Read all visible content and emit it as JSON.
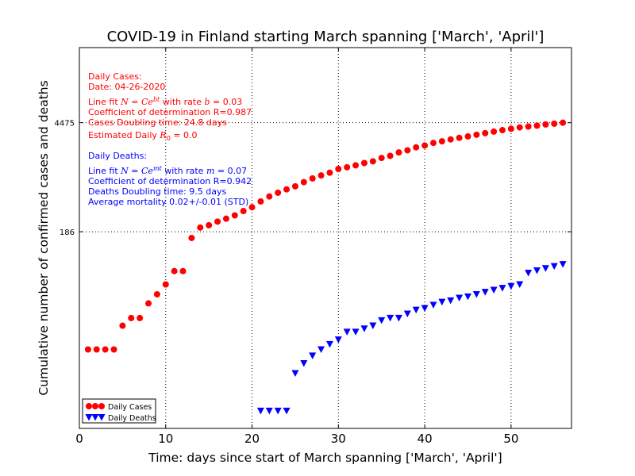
{
  "chart_data": {
    "type": "scatter",
    "title": "COVID-19 in Finland starting March spanning ['March', 'April']",
    "xlabel": "Time: days since start of March spanning ['March', 'April']",
    "ylabel": "Cumulative number of confirmed cases and deaths",
    "xlim": [
      0,
      57
    ],
    "x_ticks": [
      "0",
      "10",
      "20",
      "30",
      "40",
      "50"
    ],
    "y_scale": "log",
    "ylim": [
      0.6,
      40000
    ],
    "y_ticks": [
      {
        "value": 186,
        "label": "186"
      },
      {
        "value": 4475,
        "label": "4475"
      }
    ],
    "grid": true,
    "legend_position": "lower-left",
    "series": [
      {
        "name": "Daily Cases",
        "color": "#ff0000",
        "marker": "circle",
        "x": [
          1,
          2,
          3,
          4,
          5,
          6,
          7,
          8,
          9,
          10,
          11,
          12,
          13,
          14,
          15,
          16,
          17,
          18,
          19,
          20,
          21,
          22,
          23,
          24,
          25,
          26,
          27,
          28,
          29,
          30,
          31,
          32,
          33,
          34,
          35,
          36,
          37,
          38,
          39,
          40,
          41,
          42,
          43,
          44,
          45,
          46,
          47,
          48,
          49,
          50,
          51,
          52,
          53,
          54,
          55,
          56
        ],
        "y": [
          6,
          6,
          6,
          6,
          12,
          15,
          15,
          23,
          30,
          40,
          59,
          59,
          155,
          210,
          225,
          250,
          272,
          300,
          340,
          380,
          450,
          520,
          580,
          640,
          700,
          790,
          880,
          960,
          1040,
          1160,
          1220,
          1290,
          1380,
          1450,
          1600,
          1700,
          1880,
          2000,
          2180,
          2300,
          2480,
          2600,
          2750,
          2880,
          3000,
          3150,
          3300,
          3450,
          3600,
          3750,
          3900,
          4000,
          4100,
          4250,
          4350,
          4475
        ]
      },
      {
        "name": "Daily Deaths",
        "color": "#0000ff",
        "marker": "triangle-down",
        "x": [
          21,
          22,
          23,
          24,
          25,
          26,
          27,
          28,
          29,
          30,
          31,
          32,
          33,
          34,
          35,
          36,
          37,
          38,
          39,
          40,
          41,
          42,
          43,
          44,
          45,
          46,
          47,
          48,
          49,
          50,
          51,
          52,
          53,
          54,
          55,
          56
        ],
        "y": [
          1,
          1,
          1,
          1,
          3,
          4,
          5,
          6,
          7,
          8,
          10,
          10,
          11,
          12,
          14,
          15,
          15,
          17,
          19,
          20,
          22,
          24,
          25,
          27,
          28,
          30,
          32,
          34,
          36,
          38,
          40,
          56,
          60,
          64,
          68,
          72
        ]
      }
    ],
    "annotations": {
      "cases": {
        "header": "Daily Cases:",
        "date": "Date: 04-26-2020",
        "fit_prefix": "Line fit",
        "fit_formula_base": "N = Ce",
        "fit_formula_exp": "bt",
        "fit_rate_text": "with rate",
        "fit_rate_var": "b",
        "fit_rate_value": "= 0.03",
        "r2": "Coefficient of determination R=0.987",
        "doubling": "Cases Doubling time: 24.8 days",
        "r0_prefix": "Estimated Daily",
        "r0_var": "R",
        "r0_sub": "0",
        "r0_value": "= 0.0"
      },
      "deaths": {
        "header": "Daily Deaths:",
        "fit_prefix": "Line fit",
        "fit_formula_base": "N = Ce",
        "fit_formula_exp": "mt",
        "fit_rate_text": "with rate",
        "fit_rate_var": "m",
        "fit_rate_value": "= 0.07",
        "r2": "Coefficient of determination R=0.942",
        "doubling": "Deaths Doubling time: 9.5 days",
        "mortality": "Average mortality 0.02+/-0.01 (STD)"
      }
    }
  }
}
